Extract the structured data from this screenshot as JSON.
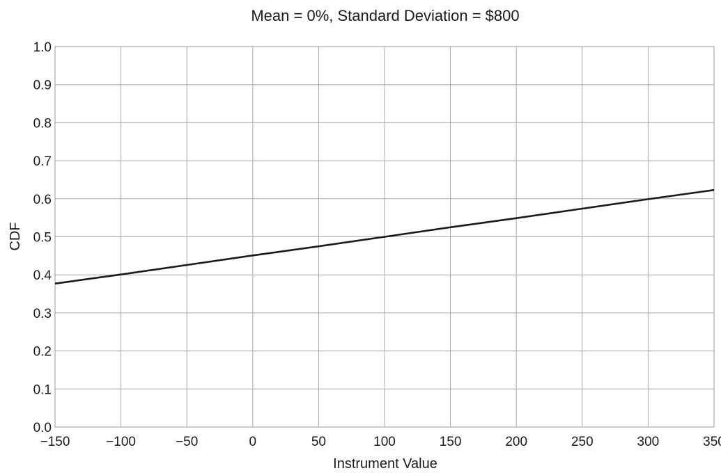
{
  "chart_data": {
    "type": "line",
    "title": "Mean = 0%, Standard Deviation = $800",
    "xlabel": "Instrument Value",
    "ylabel": "CDF",
    "xlim": [
      -150,
      350
    ],
    "ylim": [
      0.0,
      1.0
    ],
    "x_ticks": [
      -150,
      -100,
      -50,
      0,
      50,
      100,
      150,
      200,
      250,
      300,
      350
    ],
    "x_tick_labels": [
      "−150",
      "−100",
      "−50",
      "0",
      "50",
      "100",
      "150",
      "200",
      "250",
      "300",
      "350"
    ],
    "y_ticks": [
      0.0,
      0.1,
      0.2,
      0.3,
      0.4,
      0.5,
      0.6,
      0.7,
      0.8,
      0.9,
      1.0
    ],
    "y_tick_labels": [
      "0.0",
      "0.1",
      "0.2",
      "0.3",
      "0.4",
      "0.5",
      "0.6",
      "0.7",
      "0.8",
      "0.9",
      "1.0"
    ],
    "grid": true,
    "series": [
      {
        "x": [
          -150,
          -100,
          -50,
          0,
          50,
          100,
          150,
          200,
          250,
          300,
          350
        ],
        "y": [
          0.377,
          0.401,
          0.426,
          0.451,
          0.475,
          0.5,
          0.525,
          0.549,
          0.574,
          0.599,
          0.623
        ],
        "color": "#1a1a1a"
      }
    ]
  }
}
